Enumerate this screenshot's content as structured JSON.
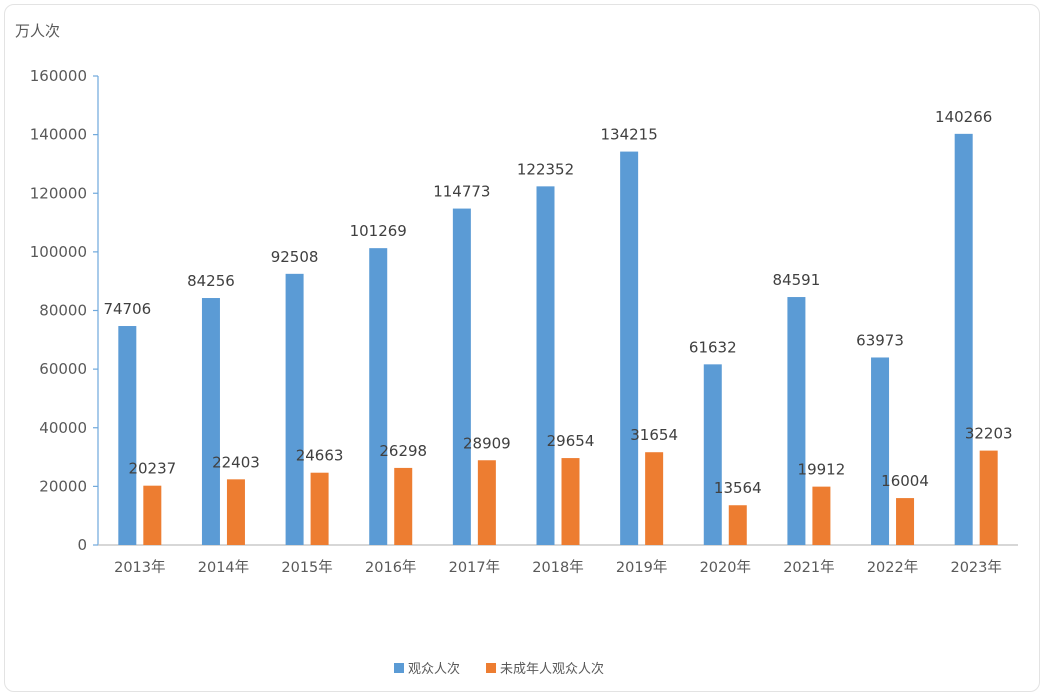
{
  "chart_data": {
    "type": "bar",
    "title": "",
    "unit_label": "万人次",
    "xlabel": "",
    "ylabel": "",
    "ylim": [
      0,
      160000
    ],
    "yticks": [
      "0",
      "20000",
      "40000",
      "60000",
      "80000",
      "100000",
      "120000",
      "140000",
      "160000"
    ],
    "grid": false,
    "legend_position": "bottom",
    "categories": [
      "2013年",
      "2014年",
      "2015年",
      "2016年",
      "2017年",
      "2018年",
      "2019年",
      "2020年",
      "2021年",
      "2022年",
      "2023年"
    ],
    "series": [
      {
        "name": "观众人次",
        "color": "#5b9bd5",
        "values": [
          74706,
          84256,
          92508,
          101269,
          114773,
          122352,
          134215,
          61632,
          84591,
          63973,
          140266
        ]
      },
      {
        "name": "未成年人观众人次",
        "color": "#ed7d31",
        "values": [
          20237,
          22403,
          24663,
          26298,
          28909,
          29654,
          31654,
          13564,
          19912,
          16004,
          32203
        ]
      }
    ]
  }
}
